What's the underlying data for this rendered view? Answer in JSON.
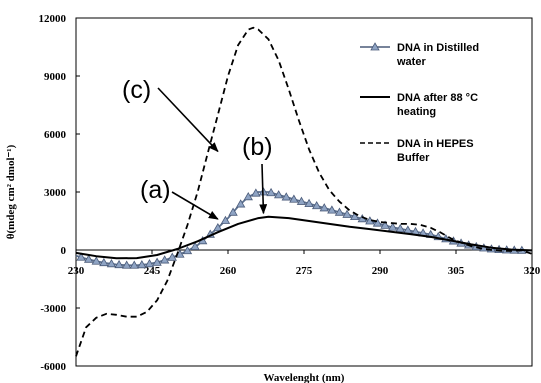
{
  "chart_data": {
    "type": "line",
    "xlabel": "Wavelenght (nm)",
    "ylabel": "θ(mdeg cm² dmol⁻¹)",
    "xlim": [
      230,
      320
    ],
    "ylim": [
      -6000,
      12000
    ],
    "x_ticks": [
      "230",
      "245",
      "260",
      "275",
      "290",
      "305",
      "320"
    ],
    "y_ticks": [
      "-6000",
      "-3000",
      "0",
      "3000",
      "6000",
      "9000",
      "12000"
    ],
    "grid": false,
    "legend_position": "top-right",
    "series": [
      {
        "name": "DNA in Distilled water",
        "style": "solid-triangle-markers",
        "color": "#5a6f8e",
        "points": [
          [
            230,
            -300
          ],
          [
            232,
            -450
          ],
          [
            234,
            -580
          ],
          [
            236,
            -680
          ],
          [
            238,
            -750
          ],
          [
            240,
            -790
          ],
          [
            242,
            -790
          ],
          [
            244,
            -740
          ],
          [
            246,
            -640
          ],
          [
            248,
            -480
          ],
          [
            250,
            -280
          ],
          [
            252,
            -40
          ],
          [
            254,
            250
          ],
          [
            256,
            700
          ],
          [
            258,
            1150
          ],
          [
            260,
            1650
          ],
          [
            262,
            2250
          ],
          [
            264,
            2750
          ],
          [
            266,
            3000
          ],
          [
            268,
            3000
          ],
          [
            270,
            2850
          ],
          [
            272,
            2700
          ],
          [
            274,
            2550
          ],
          [
            276,
            2400
          ],
          [
            278,
            2250
          ],
          [
            280,
            2100
          ],
          [
            282,
            1950
          ],
          [
            284,
            1800
          ],
          [
            286,
            1650
          ],
          [
            288,
            1500
          ],
          [
            290,
            1350
          ],
          [
            292,
            1200
          ],
          [
            294,
            1100
          ],
          [
            296,
            1000
          ],
          [
            298,
            900
          ],
          [
            300,
            800
          ],
          [
            302,
            650
          ],
          [
            304,
            500
          ],
          [
            306,
            350
          ],
          [
            308,
            220
          ],
          [
            310,
            120
          ],
          [
            312,
            50
          ],
          [
            314,
            10
          ],
          [
            316,
            -10
          ],
          [
            318,
            -20
          ],
          [
            320,
            -30
          ]
        ]
      },
      {
        "name": "DNA after 88 °C heating",
        "style": "solid",
        "color": "#000000",
        "points": [
          [
            230,
            -150
          ],
          [
            234,
            -320
          ],
          [
            238,
            -430
          ],
          [
            242,
            -420
          ],
          [
            246,
            -260
          ],
          [
            250,
            50
          ],
          [
            254,
            450
          ],
          [
            258,
            920
          ],
          [
            262,
            1350
          ],
          [
            266,
            1650
          ],
          [
            268,
            1720
          ],
          [
            272,
            1650
          ],
          [
            276,
            1500
          ],
          [
            280,
            1350
          ],
          [
            284,
            1200
          ],
          [
            288,
            1080
          ],
          [
            292,
            950
          ],
          [
            296,
            820
          ],
          [
            300,
            680
          ],
          [
            304,
            490
          ],
          [
            308,
            290
          ],
          [
            312,
            120
          ],
          [
            316,
            20
          ],
          [
            320,
            -20
          ]
        ]
      },
      {
        "name": "DNA in HEPES Buffer",
        "style": "dashed",
        "color": "#000000",
        "points": [
          [
            230,
            -5500
          ],
          [
            232,
            -4000
          ],
          [
            234,
            -3500
          ],
          [
            236,
            -3300
          ],
          [
            238,
            -3350
          ],
          [
            240,
            -3450
          ],
          [
            242,
            -3450
          ],
          [
            244,
            -3200
          ],
          [
            246,
            -2600
          ],
          [
            248,
            -1600
          ],
          [
            250,
            -200
          ],
          [
            252,
            1300
          ],
          [
            254,
            3000
          ],
          [
            256,
            5000
          ],
          [
            258,
            7000
          ],
          [
            260,
            9000
          ],
          [
            262,
            10600
          ],
          [
            264,
            11400
          ],
          [
            265,
            11500
          ],
          [
            266,
            11400
          ],
          [
            268,
            10900
          ],
          [
            270,
            9800
          ],
          [
            272,
            8300
          ],
          [
            274,
            6700
          ],
          [
            276,
            5200
          ],
          [
            278,
            4000
          ],
          [
            280,
            3100
          ],
          [
            282,
            2500
          ],
          [
            284,
            2050
          ],
          [
            286,
            1750
          ],
          [
            288,
            1550
          ],
          [
            290,
            1450
          ],
          [
            292,
            1400
          ],
          [
            294,
            1350
          ],
          [
            296,
            1350
          ],
          [
            298,
            1300
          ],
          [
            300,
            1150
          ],
          [
            302,
            900
          ],
          [
            304,
            600
          ],
          [
            306,
            380
          ],
          [
            308,
            200
          ],
          [
            310,
            80
          ],
          [
            312,
            0
          ],
          [
            314,
            -40
          ],
          [
            316,
            -40
          ],
          [
            318,
            -20
          ],
          [
            320,
            -200
          ]
        ]
      }
    ],
    "legend": [
      {
        "label_lines": [
          "DNA in Distilled",
          "water"
        ],
        "style": "solid-triangle-markers"
      },
      {
        "label_lines": [
          "DNA after 88 °C",
          "heating"
        ],
        "style": "solid"
      },
      {
        "label_lines": [
          "DNA in HEPES",
          "Buffer"
        ],
        "style": "dashed"
      }
    ],
    "annotations": [
      {
        "label": "(a)",
        "points_to": [
          258,
          1600
        ]
      },
      {
        "label": "(b)",
        "points_to": [
          267,
          1900
        ]
      },
      {
        "label": "(c)",
        "points_to": [
          258,
          5100
        ]
      }
    ]
  }
}
